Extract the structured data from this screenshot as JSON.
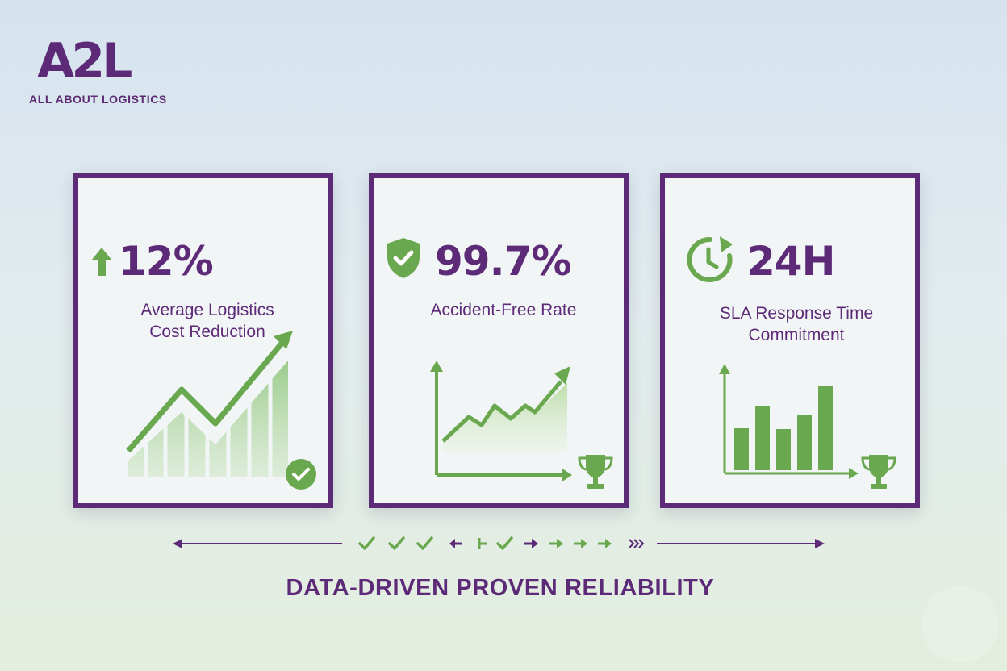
{
  "brand": {
    "logo_text": "A2L",
    "tagline": "ALL ABOUT LOGISTICS"
  },
  "colors": {
    "purple": "#5d2a78",
    "green": "#6aa84f",
    "light_green": "#bcdcb0",
    "card_bg": "#f2f5f6"
  },
  "cards": [
    {
      "stat": "12%",
      "label_line1": "Average Logistics",
      "label_line2": "Cost Reduction",
      "icon": "up-arrow-icon",
      "chart": "rising-bar-area-chart-with-arrow",
      "badge": "check-circle-icon"
    },
    {
      "stat": "99.7%",
      "label_line1": "Accident-Free Rate",
      "icon": "shield-check-icon",
      "chart": "rising-line-area-chart",
      "badge": "trophy-icon"
    },
    {
      "stat": "24H",
      "label_line1": "SLA Response Time",
      "label_line2": "Commitment",
      "icon": "clock-icon",
      "chart": "bar-chart",
      "badge": "trophy-icon"
    }
  ],
  "divider_icons": [
    "check-icon",
    "check-icon",
    "check-icon",
    "arrow-left-icon",
    "tee-icon",
    "check-icon",
    "arrow-right-icon",
    "arrow-right-icon",
    "arrow-right-icon",
    "arrow-right-icon",
    "double-chevron-icon"
  ],
  "headline": "DATA-DRIVEN PROVEN RELIABILITY"
}
